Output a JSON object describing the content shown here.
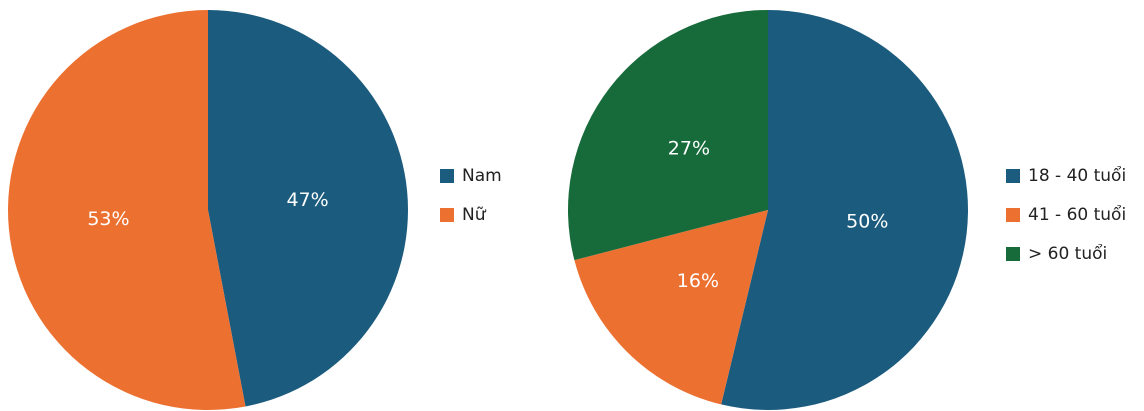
{
  "chart_data": [
    {
      "type": "pie",
      "categories": [
        "Nam",
        "Nữ"
      ],
      "values": [
        47,
        53
      ],
      "value_labels": [
        "47%",
        "53%"
      ],
      "colors": [
        "#1b5b7e",
        "#ec7030"
      ]
    },
    {
      "type": "pie",
      "categories": [
        "18 - 40 tuổi",
        "41 - 60 tuổi",
        "> 60 tuổi"
      ],
      "values": [
        50,
        16,
        27
      ],
      "value_labels": [
        "50%",
        "16%",
        "27%"
      ],
      "colors": [
        "#1b5b7e",
        "#ec7030",
        "#176b3a"
      ]
    }
  ]
}
